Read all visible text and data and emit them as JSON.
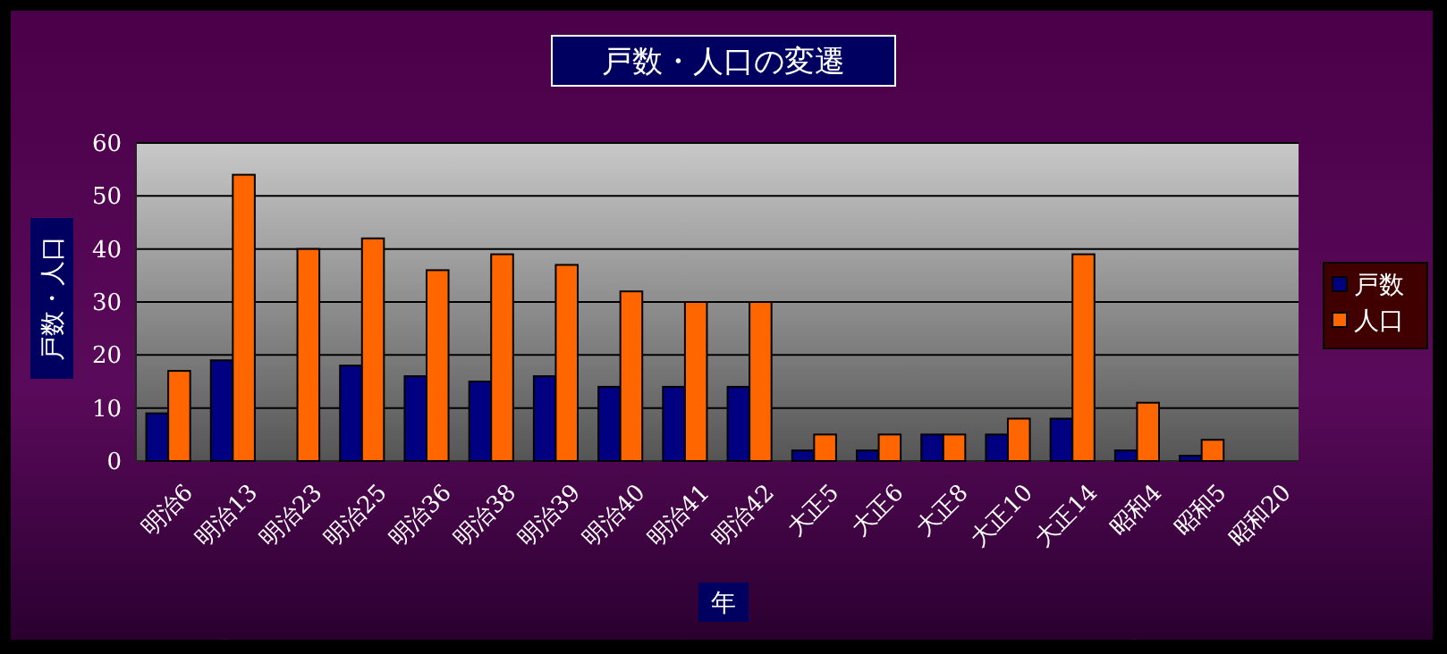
{
  "chart_data": {
    "type": "bar",
    "title": "戸数・人口の変遷",
    "xlabel": "年",
    "ylabel": "戸数・人口",
    "categories": [
      "明治6",
      "明治13",
      "明治23",
      "明治25",
      "明治36",
      "明治38",
      "明治39",
      "明治40",
      "明治41",
      "明治42",
      "大正5",
      "大正6",
      "大正8",
      "大正10",
      "大正14",
      "昭和4",
      "昭和5",
      "昭和20"
    ],
    "series": [
      {
        "name": "戸数",
        "color": "#000080",
        "values": [
          9,
          19,
          null,
          18,
          16,
          15,
          16,
          14,
          14,
          14,
          2,
          2,
          5,
          5,
          8,
          2,
          1,
          null
        ]
      },
      {
        "name": "人口",
        "color": "#ff6600",
        "values": [
          17,
          54,
          40,
          42,
          36,
          39,
          37,
          32,
          30,
          30,
          5,
          5,
          5,
          8,
          39,
          11,
          4,
          null
        ]
      }
    ],
    "ylim": [
      0,
      60
    ],
    "yticks": [
      0,
      10,
      20,
      30,
      40,
      50,
      60
    ],
    "grid": "y",
    "legend": "right"
  }
}
